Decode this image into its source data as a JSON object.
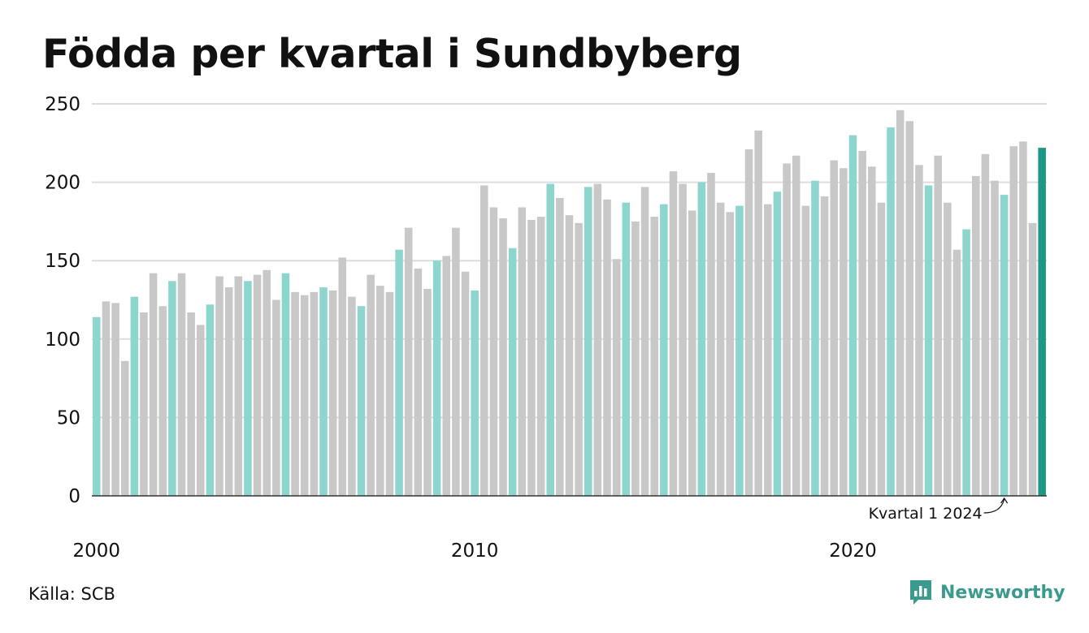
{
  "title": "Födda per kvartal i Sundbyberg",
  "source": "Källa: SCB",
  "brand": {
    "name": "Newsworthy",
    "icon": "newsworthy-logo-icon",
    "color": "#3a9a8e"
  },
  "colors": {
    "q1": "#8dd6cd",
    "other": "#c8c8c8",
    "latest": "#1e9886",
    "grid": "#dddddd",
    "axis": "#333333"
  },
  "chart_data": {
    "type": "bar",
    "title": "Födda per kvartal i Sundbyberg",
    "xlabel": "",
    "ylabel": "",
    "ylim": [
      0,
      250
    ],
    "yticks": [
      "0",
      "50",
      "100",
      "150",
      "200",
      "250"
    ],
    "xticks": [
      {
        "label": "2000",
        "quarter": "2000 Q1"
      },
      {
        "label": "2010",
        "quarter": "2010 Q1"
      },
      {
        "label": "2020",
        "quarter": "2020 Q1"
      }
    ],
    "grid": true,
    "highlight": "Q1 of each year in teal; latest quarter in dark teal",
    "annotation": {
      "text": "Kvartal 1 2024",
      "target": "2024 Q1"
    },
    "categories": [
      "2000 Q1",
      "2000 Q2",
      "2000 Q3",
      "2000 Q4",
      "2001 Q1",
      "2001 Q2",
      "2001 Q3",
      "2001 Q4",
      "2002 Q1",
      "2002 Q2",
      "2002 Q3",
      "2002 Q4",
      "2003 Q1",
      "2003 Q2",
      "2003 Q3",
      "2003 Q4",
      "2004 Q1",
      "2004 Q2",
      "2004 Q3",
      "2004 Q4",
      "2005 Q1",
      "2005 Q2",
      "2005 Q3",
      "2005 Q4",
      "2006 Q1",
      "2006 Q2",
      "2006 Q3",
      "2006 Q4",
      "2007 Q1",
      "2007 Q2",
      "2007 Q3",
      "2007 Q4",
      "2008 Q1",
      "2008 Q2",
      "2008 Q3",
      "2008 Q4",
      "2009 Q1",
      "2009 Q2",
      "2009 Q3",
      "2009 Q4",
      "2010 Q1",
      "2010 Q2",
      "2010 Q3",
      "2010 Q4",
      "2011 Q1",
      "2011 Q2",
      "2011 Q3",
      "2011 Q4",
      "2012 Q1",
      "2012 Q2",
      "2012 Q3",
      "2012 Q4",
      "2013 Q1",
      "2013 Q2",
      "2013 Q3",
      "2013 Q4",
      "2014 Q1",
      "2014 Q2",
      "2014 Q3",
      "2014 Q4",
      "2015 Q1",
      "2015 Q2",
      "2015 Q3",
      "2015 Q4",
      "2016 Q1",
      "2016 Q2",
      "2016 Q3",
      "2016 Q4",
      "2017 Q1",
      "2017 Q2",
      "2017 Q3",
      "2017 Q4",
      "2018 Q1",
      "2018 Q2",
      "2018 Q3",
      "2018 Q4",
      "2019 Q1",
      "2019 Q2",
      "2019 Q3",
      "2019 Q4",
      "2020 Q1",
      "2020 Q2",
      "2020 Q3",
      "2020 Q4",
      "2021 Q1",
      "2021 Q2",
      "2021 Q3",
      "2021 Q4",
      "2022 Q1",
      "2022 Q2",
      "2022 Q3",
      "2022 Q4",
      "2023 Q1",
      "2023 Q2",
      "2023 Q3",
      "2023 Q4",
      "2024 Q1",
      "2024 Q2",
      "2024 Q3",
      "2024 Q4",
      "2025 Q1"
    ],
    "values": [
      114,
      124,
      123,
      86,
      127,
      117,
      142,
      121,
      137,
      142,
      117,
      109,
      122,
      140,
      133,
      140,
      137,
      141,
      144,
      125,
      142,
      130,
      128,
      130,
      133,
      131,
      152,
      127,
      121,
      141,
      134,
      130,
      157,
      171,
      145,
      132,
      150,
      153,
      171,
      143,
      131,
      198,
      184,
      177,
      158,
      184,
      176,
      178,
      199,
      190,
      179,
      174,
      197,
      199,
      189,
      151,
      187,
      175,
      197,
      178,
      186,
      207,
      199,
      182,
      200,
      206,
      187,
      181,
      185,
      221,
      233,
      186,
      194,
      212,
      217,
      185,
      201,
      191,
      214,
      209,
      230,
      220,
      210,
      187,
      235,
      246,
      239,
      211,
      198,
      217,
      187,
      157,
      170,
      204,
      218,
      201,
      192,
      223,
      226,
      174,
      222
    ]
  }
}
